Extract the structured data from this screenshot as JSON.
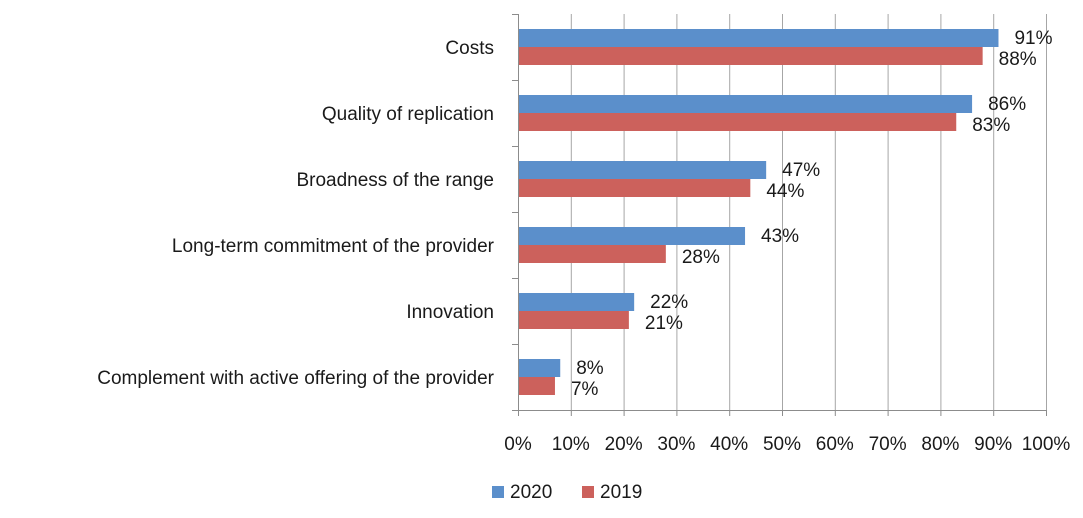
{
  "chart_data": {
    "type": "bar",
    "orientation": "horizontal",
    "categories": [
      "Costs",
      "Quality of replication",
      "Broadness of the range",
      "Long-term commitment of the provider",
      "Innovation",
      "Complement with active offering of the provider"
    ],
    "series": [
      {
        "name": "2020",
        "color": "#5b8fcb",
        "values": [
          91,
          86,
          47,
          43,
          22,
          8
        ]
      },
      {
        "name": "2019",
        "color": "#cc615c",
        "values": [
          88,
          83,
          44,
          28,
          21,
          7
        ]
      }
    ],
    "xlim": [
      0,
      100
    ],
    "xticks": [
      0,
      10,
      20,
      30,
      40,
      50,
      60,
      70,
      80,
      90,
      100
    ],
    "xtick_labels": [
      "0%",
      "10%",
      "20%",
      "30%",
      "40%",
      "50%",
      "60%",
      "70%",
      "80%",
      "90%",
      "100%"
    ],
    "data_labels": {
      "2020": [
        "91%",
        "86%",
        "47%",
        "43%",
        "22%",
        "8%"
      ],
      "2019": [
        "88%",
        "83%",
        "44%",
        "28%",
        "21%",
        "7%"
      ]
    },
    "title": "",
    "xlabel": "",
    "ylabel": "",
    "grid": "vertical",
    "legend": {
      "position": "bottom",
      "items": [
        "2020",
        "2019"
      ]
    }
  },
  "colors": {
    "grid": "#a6a6a6",
    "axis": "#8c8c8c"
  }
}
